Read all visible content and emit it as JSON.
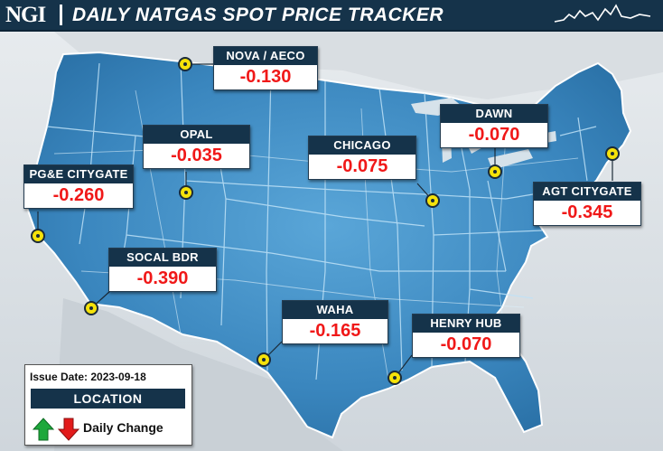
{
  "header": {
    "logo": "NGI",
    "title": "DAILY NATGAS SPOT PRICE TRACKER",
    "sparkline_icon": "sparkline-icon"
  },
  "locations": [
    {
      "id": "nova-aeco",
      "name": "NOVA / AECO",
      "change": "-0.130"
    },
    {
      "id": "dawn",
      "name": "DAWN",
      "change": "-0.070"
    },
    {
      "id": "opal",
      "name": "OPAL",
      "change": "-0.035"
    },
    {
      "id": "chicago",
      "name": "CHICAGO",
      "change": "-0.075"
    },
    {
      "id": "pge-citygate",
      "name": "PG&E CITYGATE",
      "change": "-0.260"
    },
    {
      "id": "agt-citygate",
      "name": "AGT CITYGATE",
      "change": "-0.345"
    },
    {
      "id": "socal-bdr",
      "name": "SOCAL BDR",
      "change": "-0.390"
    },
    {
      "id": "waha",
      "name": "WAHA",
      "change": "-0.165"
    },
    {
      "id": "henry-hub",
      "name": "HENRY HUB",
      "change": "-0.070"
    }
  ],
  "legend": {
    "issue_date": "Issue Date: 2023-09-18",
    "location_label": "LOCATION",
    "change_label": "Daily Change",
    "up_icon": "up-arrow-icon",
    "down_icon": "down-arrow-icon"
  },
  "colors": {
    "header_bg": "#15334a",
    "map_fill": "#3f8cc4",
    "value_red": "#f01818",
    "marker_yellow": "#f5e20a",
    "up_green": "#1ea83c",
    "down_red": "#e21b1b"
  }
}
